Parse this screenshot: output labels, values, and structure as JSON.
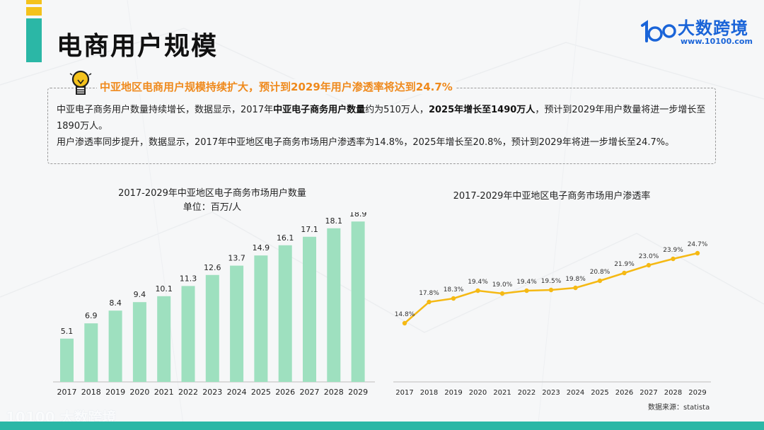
{
  "page": {
    "title": "电商用户规模"
  },
  "brand": {
    "name": "大数跨境",
    "url": "www.10100.com",
    "logo_mark": "10100",
    "footer_name": "大数跨境",
    "color": "#1a64d8"
  },
  "colors": {
    "accent_teal": "#2bb7a6",
    "accent_yellow": "#f4c21c",
    "headline_orange": "#ef8a1d",
    "bar_green": "#9ee0bf",
    "line_yellow": "#f5b914"
  },
  "summary": {
    "headline": "中亚地区电商用户规模持续扩大，预计到2029年用户渗透率将达到24.7%",
    "line1_a": "中亚电子商务用户数量持续增长，数据显示，2017年",
    "line1_bold1": "中亚电子商务用户数量",
    "line1_b": "约为510万人，",
    "line1_bold2": "2025年增长至1490万人",
    "line1_c": "，预计到2029年用户数量将进一步增长至1890万人。",
    "line2": "用户渗透率同步提升，数据显示，2017年中亚地区电子商务市场用户渗透率为14.8%，2025年增长至20.8%，预计到2029年将进一步增长至24.7%。"
  },
  "source": "数据来源：statista",
  "chart_data": [
    {
      "type": "bar",
      "title": "2017-2029年中亚地区电子商务市场用户数量",
      "subtitle": "单位：百万/人",
      "categories": [
        "2017",
        "2018",
        "2019",
        "2020",
        "2021",
        "2022",
        "2023",
        "2024",
        "2025",
        "2026",
        "2027",
        "2028",
        "2029"
      ],
      "values": [
        5.1,
        6.9,
        8.4,
        9.4,
        10.1,
        11.3,
        12.6,
        13.7,
        14.9,
        16.1,
        17.1,
        18.1,
        18.9
      ],
      "labels": [
        "5.1",
        "6.9",
        "8.4",
        "9.4",
        "10.1",
        "11.3",
        "12.6",
        "13.7",
        "14.9",
        "16.1",
        "17.1",
        "18.1",
        "18.9"
      ],
      "ylim": [
        0,
        19.5
      ],
      "grid": false
    },
    {
      "type": "line",
      "title": "2017-2029年中亚地区电子商务市场用户渗透率",
      "categories": [
        "2017",
        "2018",
        "2019",
        "2020",
        "2021",
        "2022",
        "2023",
        "2024",
        "2025",
        "2026",
        "2027",
        "2028",
        "2029"
      ],
      "values": [
        14.8,
        17.8,
        18.3,
        19.4,
        19.0,
        19.4,
        19.5,
        19.8,
        20.8,
        21.9,
        23.0,
        23.9,
        24.7
      ],
      "labels": [
        "14.8%",
        "17.8%",
        "18.3%",
        "19.4%",
        "19.0%",
        "19.4%",
        "19.5%",
        "19.8%",
        "20.8%",
        "21.9%",
        "23.0%",
        "23.9%",
        "24.7%"
      ],
      "ylim": [
        8,
        26
      ],
      "grid": false
    }
  ]
}
